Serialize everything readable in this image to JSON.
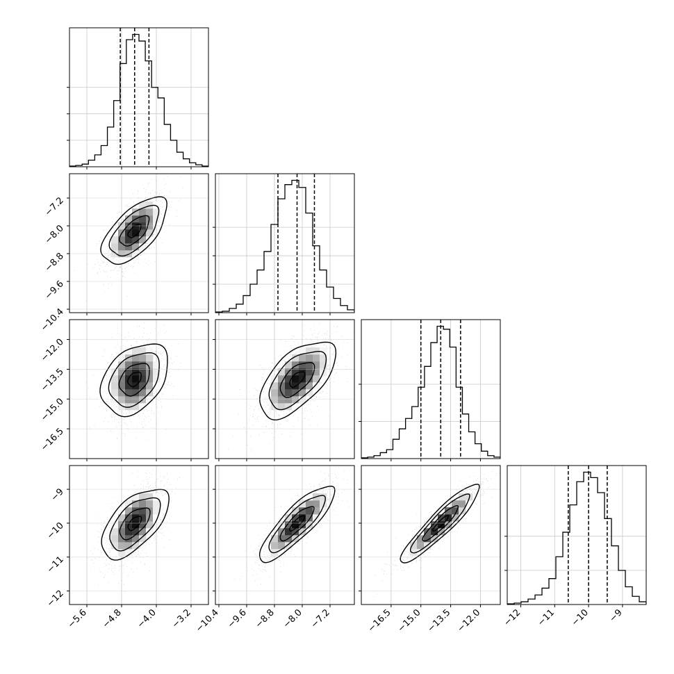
{
  "chart_data": {
    "type": "corner",
    "params": [
      {
        "range": [
          -6.0,
          -2.8
        ],
        "ticks": [
          -5.6,
          -4.8,
          -4.0,
          -3.2
        ],
        "tick_labels": [
          "−5.6",
          "−4.8",
          "−4.0",
          "−3.2"
        ],
        "quantiles": [
          -4.83,
          -4.5,
          -4.17
        ],
        "hist_ticks": [
          20,
          40,
          60
        ],
        "hist": [
          0.5,
          1,
          2,
          5,
          9,
          16,
          30,
          50,
          78,
          96,
          100,
          95,
          80,
          60,
          52,
          32,
          20,
          11,
          6,
          3,
          1.5,
          0.5
        ]
      },
      {
        "range": [
          -10.5,
          -6.5
        ],
        "ticks": [
          -10.4,
          -9.6,
          -8.8,
          -8.0,
          -7.2
        ],
        "tick_labels": [
          "−10.4",
          "−9.6",
          "−8.8",
          "−8.0",
          "−7.2"
        ],
        "quantiles": [
          -8.7,
          -8.15,
          -7.65
        ],
        "hist_ticks": [
          20,
          40,
          60
        ],
        "hist": [
          0.5,
          1,
          3,
          6,
          12,
          20,
          30,
          43,
          62,
          80,
          90,
          93,
          88,
          70,
          47,
          30,
          18,
          10,
          5,
          2
        ]
      },
      {
        "range": [
          -18.0,
          -11.0
        ],
        "ticks": [
          -16.5,
          -15.0,
          -13.5,
          -12.0
        ],
        "tick_labels": [
          "−16.5",
          "−15.0",
          "−13.5",
          "−12.0"
        ],
        "quantiles": [
          -15.0,
          -14.0,
          -13.0
        ],
        "hist_ticks": [
          25,
          50
        ],
        "hist": [
          0.5,
          1,
          2,
          4,
          6,
          13,
          20,
          27,
          35,
          48,
          62,
          78,
          89,
          87,
          75,
          48,
          30,
          18,
          10,
          5,
          2,
          1
        ]
      },
      {
        "range": [
          -12.4,
          -8.3
        ],
        "ticks": [
          -12,
          -11,
          -10,
          -9
        ],
        "tick_labels": [
          "−12",
          "−11",
          "−10",
          "−9"
        ],
        "quantiles": [
          -10.6,
          -10.0,
          -9.45
        ],
        "hist_ticks": [
          25,
          50
        ],
        "hist": [
          0.5,
          1,
          2,
          4,
          7,
          12,
          19,
          35,
          53,
          73,
          90,
          97,
          93,
          82,
          63,
          43,
          25,
          13,
          6,
          2
        ]
      }
    ],
    "correlations": {
      "1-0": 0.6,
      "2-0": 0.2,
      "2-1": 0.6,
      "3-0": 0.55,
      "3-1": 0.85,
      "3-2": 0.92
    },
    "scatter_color": "#a0a0a0",
    "grid": true
  }
}
